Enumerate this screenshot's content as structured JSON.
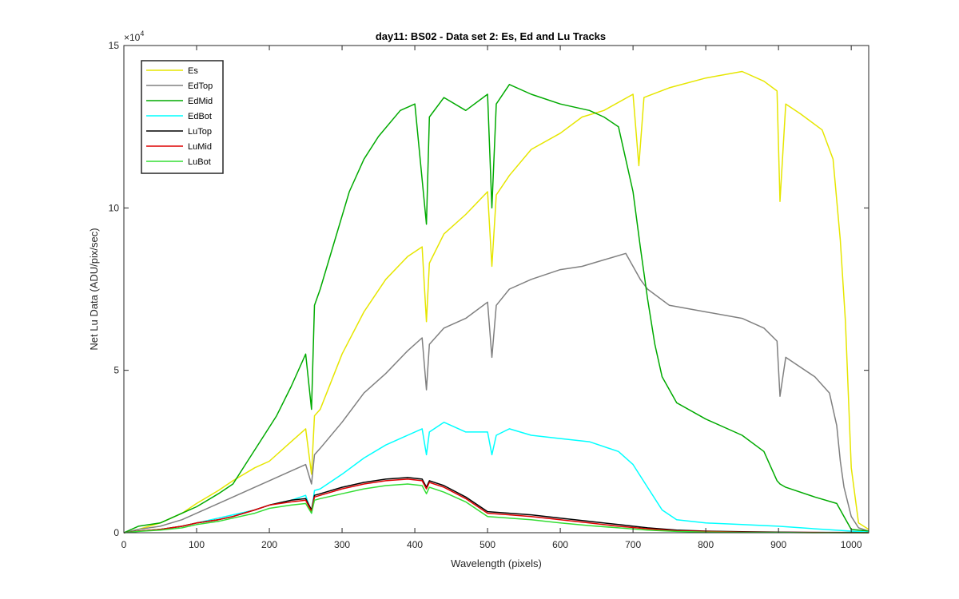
{
  "chart_data": {
    "type": "line",
    "title": "day11: BS02 - Data set 2: Es, Ed and Lu Tracks",
    "xlabel": "Wavelength (pixels)",
    "ylabel": "Net Lu Data (ADU/pix/sec)",
    "xlim": [
      0,
      1024
    ],
    "ylim": [
      0,
      15
    ],
    "y_exponent_label": "×10",
    "y_exponent_power": "4",
    "xticks": [
      0,
      100,
      200,
      300,
      400,
      500,
      600,
      700,
      800,
      900,
      1000
    ],
    "yticks": [
      0,
      5,
      10,
      15
    ],
    "x_tick_labels": [
      "0",
      "100",
      "200",
      "300",
      "400",
      "500",
      "600",
      "700",
      "800",
      "900",
      "1000"
    ],
    "y_tick_labels": [
      "0",
      "5",
      "10",
      "15"
    ],
    "legend_position": "top-left",
    "series": [
      {
        "name": "Es",
        "color": "#e6e600",
        "x": [
          0,
          20,
          50,
          80,
          100,
          130,
          150,
          180,
          200,
          230,
          250,
          258,
          262,
          270,
          300,
          330,
          360,
          390,
          410,
          416,
          420,
          440,
          470,
          500,
          506,
          512,
          530,
          560,
          600,
          630,
          660,
          700,
          708,
          715,
          750,
          800,
          850,
          880,
          898,
          902,
          910,
          930,
          960,
          975,
          985,
          992,
          1000,
          1010,
          1024
        ],
        "y": [
          0,
          0.1,
          0.3,
          0.6,
          0.9,
          1.3,
          1.6,
          2.0,
          2.2,
          2.8,
          3.2,
          1.8,
          3.6,
          3.8,
          5.5,
          6.8,
          7.8,
          8.5,
          8.8,
          6.5,
          8.3,
          9.2,
          9.8,
          10.5,
          8.2,
          10.4,
          11.0,
          11.8,
          12.3,
          12.8,
          13.0,
          13.5,
          11.3,
          13.4,
          13.7,
          14.0,
          14.2,
          13.9,
          13.6,
          10.2,
          13.2,
          12.9,
          12.4,
          11.5,
          9.0,
          6.5,
          2.0,
          0.3,
          0.1
        ]
      },
      {
        "name": "EdTop",
        "color": "#808080",
        "x": [
          0,
          20,
          50,
          80,
          100,
          130,
          150,
          180,
          200,
          230,
          250,
          258,
          262,
          270,
          300,
          330,
          360,
          390,
          410,
          416,
          420,
          440,
          470,
          500,
          506,
          512,
          530,
          560,
          600,
          630,
          660,
          690,
          700,
          710,
          720,
          750,
          800,
          850,
          880,
          898,
          902,
          910,
          950,
          970,
          980,
          985,
          990,
          1000,
          1010,
          1024
        ],
        "y": [
          0,
          0.1,
          0.2,
          0.4,
          0.6,
          0.9,
          1.1,
          1.4,
          1.6,
          1.9,
          2.1,
          1.5,
          2.4,
          2.6,
          3.4,
          4.3,
          4.9,
          5.6,
          6.0,
          4.4,
          5.8,
          6.3,
          6.6,
          7.1,
          5.4,
          7.0,
          7.5,
          7.8,
          8.1,
          8.2,
          8.4,
          8.6,
          8.2,
          7.8,
          7.5,
          7.0,
          6.8,
          6.6,
          6.3,
          5.9,
          4.2,
          5.4,
          4.8,
          4.3,
          3.3,
          2.2,
          1.4,
          0.5,
          0.15,
          0.05
        ]
      },
      {
        "name": "EdMid",
        "color": "#00aa00",
        "x": [
          0,
          20,
          50,
          80,
          100,
          130,
          150,
          170,
          190,
          210,
          230,
          250,
          258,
          262,
          270,
          290,
          310,
          330,
          350,
          380,
          400,
          416,
          420,
          440,
          470,
          500,
          506,
          512,
          530,
          560,
          600,
          640,
          660,
          680,
          690,
          700,
          710,
          720,
          730,
          740,
          760,
          800,
          850,
          880,
          890,
          898,
          902,
          910,
          950,
          980,
          990,
          1000,
          1024
        ],
        "y": [
          0,
          0.2,
          0.3,
          0.6,
          0.8,
          1.2,
          1.5,
          2.2,
          2.9,
          3.6,
          4.5,
          5.5,
          3.8,
          7.0,
          7.5,
          9.0,
          10.5,
          11.5,
          12.2,
          13.0,
          13.2,
          9.5,
          12.8,
          13.4,
          13.0,
          13.5,
          10.0,
          13.2,
          13.8,
          13.5,
          13.2,
          13.0,
          12.8,
          12.5,
          11.5,
          10.5,
          8.8,
          7.2,
          5.8,
          4.8,
          4.0,
          3.5,
          3.0,
          2.5,
          2.0,
          1.6,
          1.5,
          1.4,
          1.1,
          0.9,
          0.5,
          0.1,
          0.05
        ]
      },
      {
        "name": "EdBot",
        "color": "#00ffff",
        "x": [
          0,
          20,
          50,
          80,
          100,
          130,
          150,
          180,
          200,
          230,
          250,
          258,
          262,
          270,
          300,
          330,
          360,
          390,
          410,
          416,
          420,
          440,
          470,
          500,
          506,
          512,
          530,
          560,
          600,
          640,
          680,
          700,
          720,
          740,
          760,
          800,
          850,
          900,
          950,
          1000,
          1024
        ],
        "y": [
          0,
          0.05,
          0.1,
          0.2,
          0.3,
          0.45,
          0.55,
          0.7,
          0.85,
          1.0,
          1.15,
          0.6,
          1.3,
          1.35,
          1.8,
          2.3,
          2.7,
          3.0,
          3.2,
          2.4,
          3.1,
          3.4,
          3.1,
          3.1,
          2.4,
          3.0,
          3.2,
          3.0,
          2.9,
          2.8,
          2.5,
          2.1,
          1.4,
          0.7,
          0.4,
          0.3,
          0.25,
          0.2,
          0.12,
          0.05,
          0.02
        ]
      },
      {
        "name": "LuTop",
        "color": "#000000",
        "x": [
          0,
          20,
          50,
          80,
          100,
          130,
          150,
          180,
          200,
          230,
          250,
          258,
          262,
          270,
          300,
          330,
          360,
          390,
          410,
          416,
          420,
          440,
          470,
          500,
          530,
          560,
          600,
          640,
          680,
          720,
          760,
          800,
          850,
          900,
          950,
          1000,
          1024
        ],
        "y": [
          0,
          0.05,
          0.1,
          0.2,
          0.3,
          0.4,
          0.5,
          0.7,
          0.85,
          1.0,
          1.05,
          0.7,
          1.15,
          1.2,
          1.4,
          1.55,
          1.65,
          1.7,
          1.65,
          1.4,
          1.6,
          1.45,
          1.1,
          0.65,
          0.6,
          0.55,
          0.45,
          0.35,
          0.25,
          0.15,
          0.08,
          0.05,
          0.03,
          0.02,
          0.01,
          0.01,
          0.0
        ]
      },
      {
        "name": "LuMid",
        "color": "#dd0000",
        "x": [
          0,
          20,
          50,
          80,
          100,
          130,
          150,
          180,
          200,
          230,
          250,
          258,
          262,
          270,
          300,
          330,
          360,
          390,
          410,
          416,
          420,
          440,
          470,
          500,
          530,
          560,
          600,
          640,
          680,
          720,
          760,
          800,
          850,
          900,
          950,
          1000,
          1024
        ],
        "y": [
          0,
          0.05,
          0.1,
          0.2,
          0.3,
          0.4,
          0.5,
          0.7,
          0.85,
          0.95,
          1.0,
          0.65,
          1.1,
          1.15,
          1.35,
          1.5,
          1.6,
          1.65,
          1.6,
          1.35,
          1.55,
          1.4,
          1.05,
          0.6,
          0.55,
          0.5,
          0.4,
          0.3,
          0.2,
          0.12,
          0.06,
          0.04,
          0.02,
          0.01,
          0.01,
          0.0,
          0.0
        ]
      },
      {
        "name": "LuBot",
        "color": "#33dd33",
        "x": [
          0,
          20,
          50,
          80,
          100,
          130,
          150,
          180,
          200,
          230,
          250,
          258,
          262,
          270,
          300,
          330,
          360,
          390,
          410,
          416,
          420,
          440,
          470,
          500,
          530,
          560,
          600,
          640,
          680,
          720,
          760,
          800,
          850,
          900,
          950,
          1000,
          1024
        ],
        "y": [
          0,
          0.04,
          0.08,
          0.15,
          0.25,
          0.35,
          0.45,
          0.6,
          0.75,
          0.85,
          0.9,
          0.6,
          1.0,
          1.05,
          1.2,
          1.35,
          1.45,
          1.5,
          1.45,
          1.2,
          1.4,
          1.25,
          0.95,
          0.5,
          0.45,
          0.4,
          0.3,
          0.22,
          0.15,
          0.08,
          0.04,
          0.02,
          0.01,
          0.01,
          0.0,
          0.0,
          0.0
        ]
      }
    ]
  }
}
